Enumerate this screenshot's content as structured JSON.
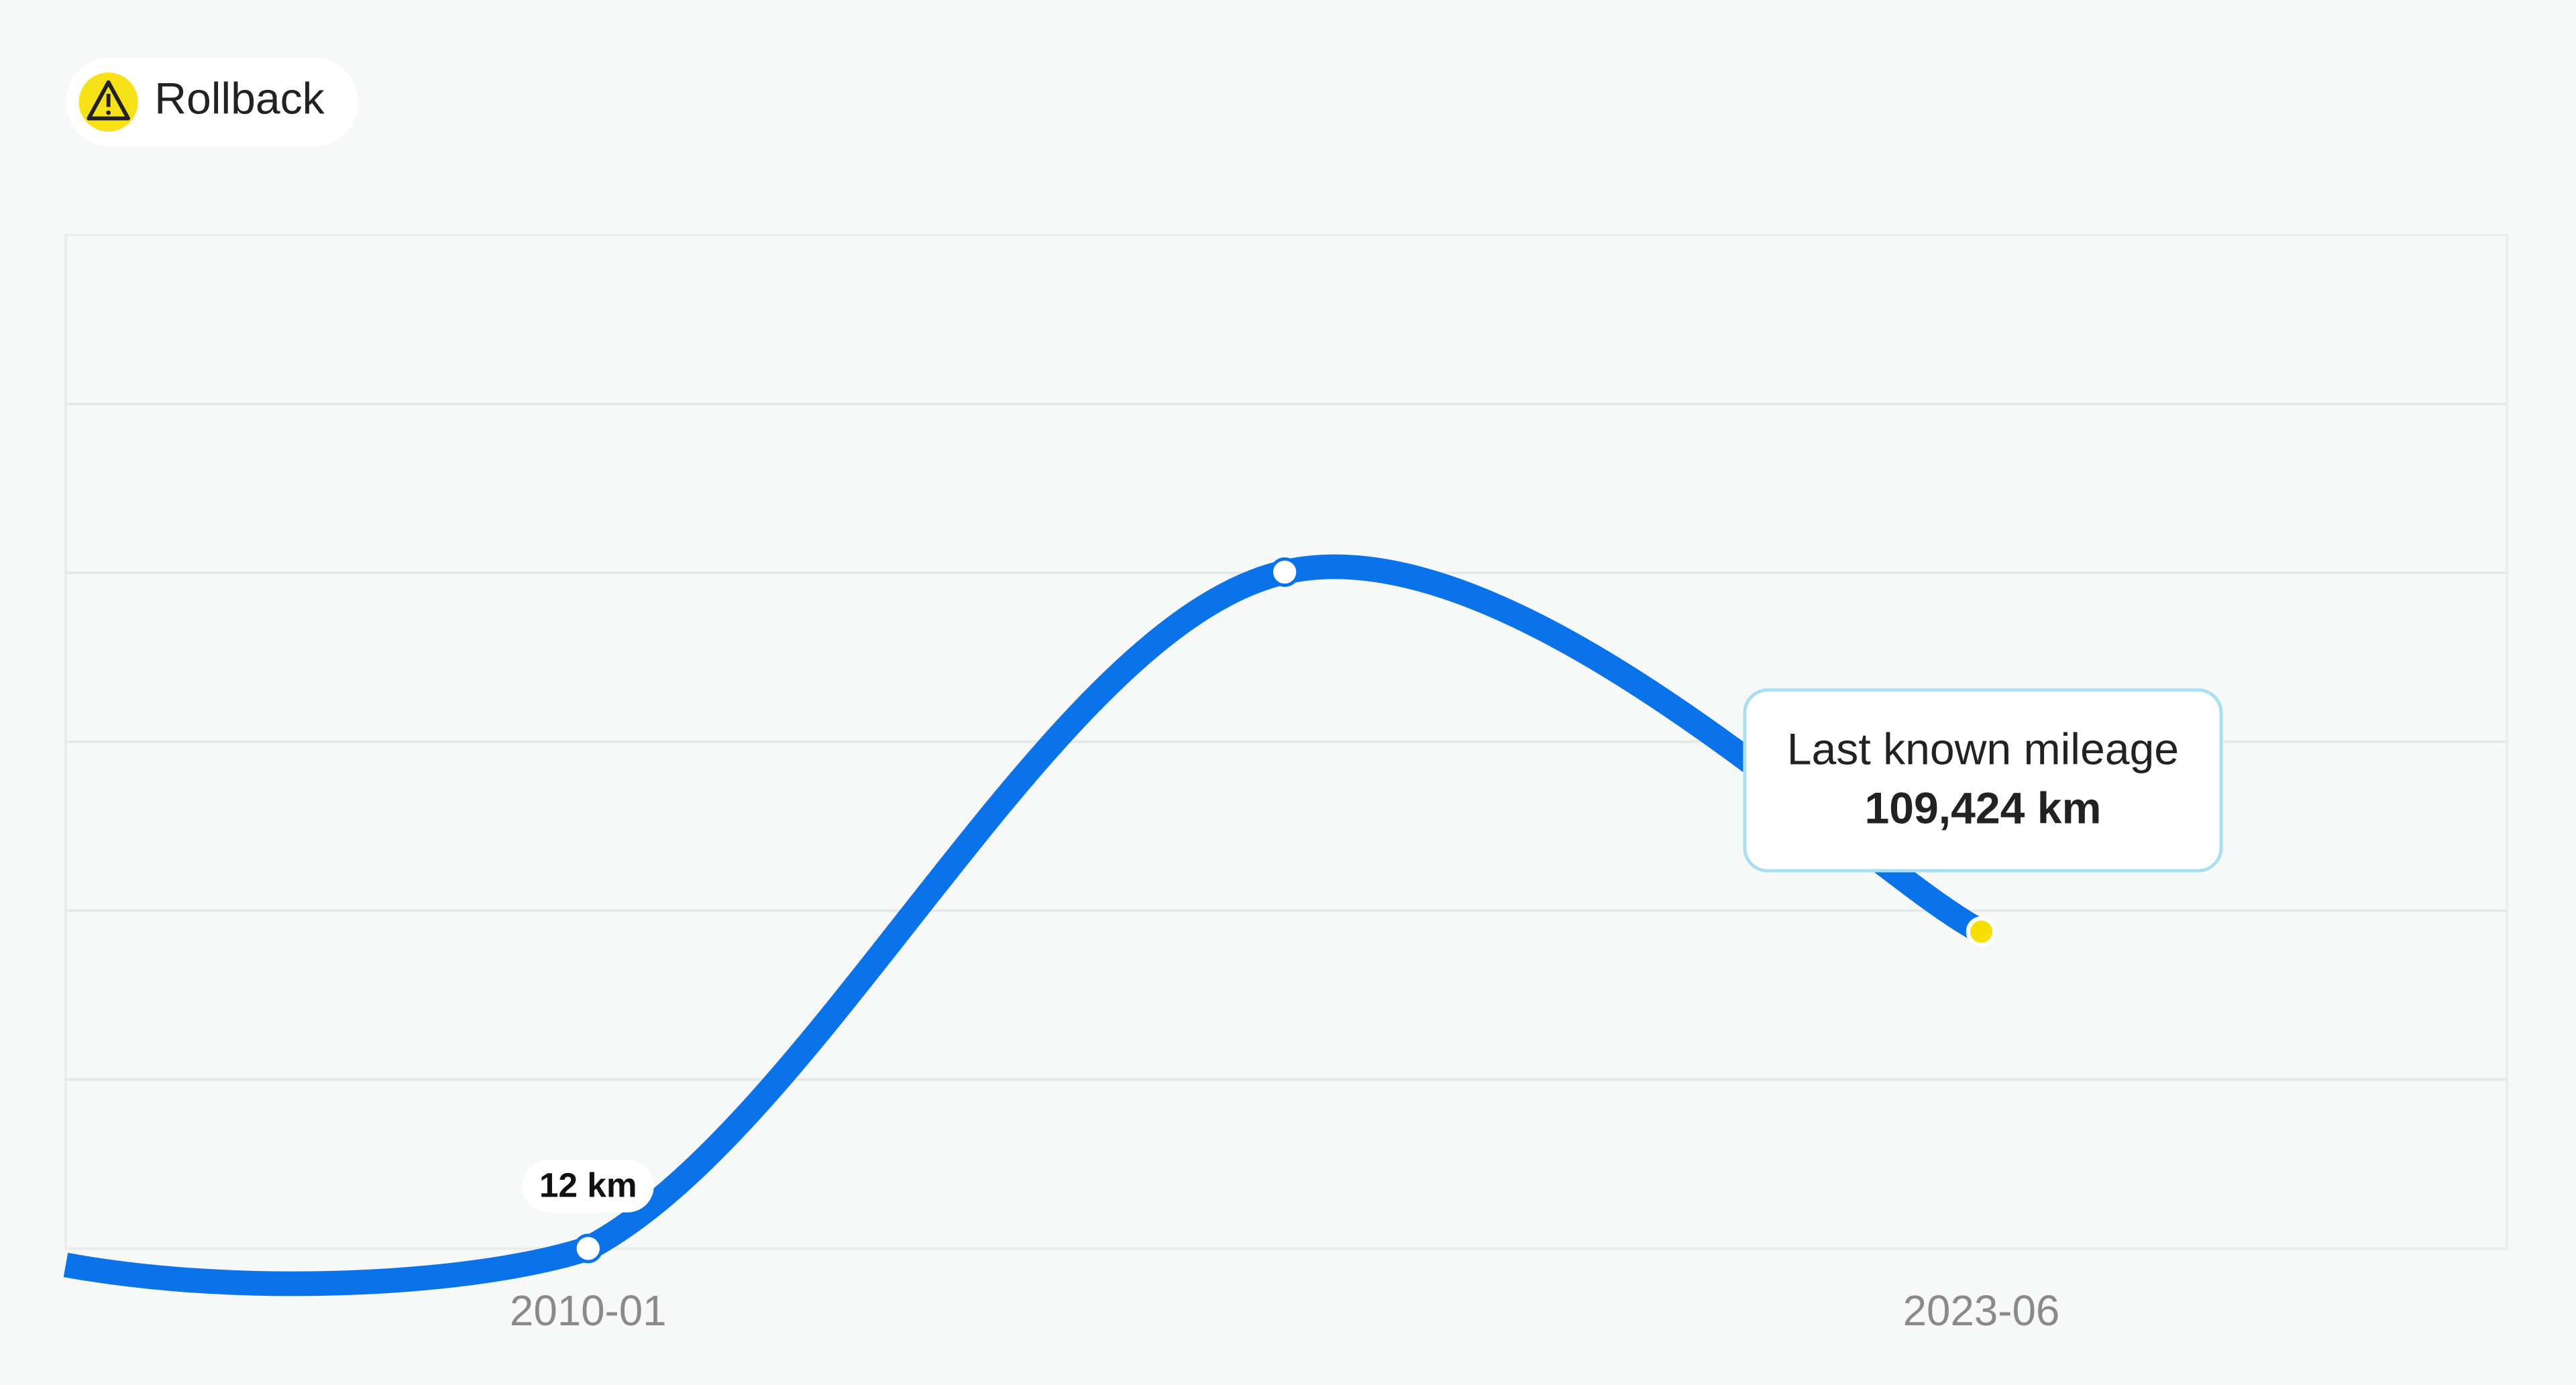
{
  "chart_data": {
    "type": "line",
    "badge": "Rollback",
    "categories": [
      "2010-01",
      null,
      "2023-06"
    ],
    "series": [
      {
        "color": "#0a73ea",
        "values": [
          12,
          233600,
          109424
        ],
        "value_labels": [
          "12 km",
          null,
          "109,424 km"
        ]
      }
    ],
    "tooltip_title": "Last known mileage",
    "ylim": [
      0,
      350000
    ],
    "grid": true
  }
}
